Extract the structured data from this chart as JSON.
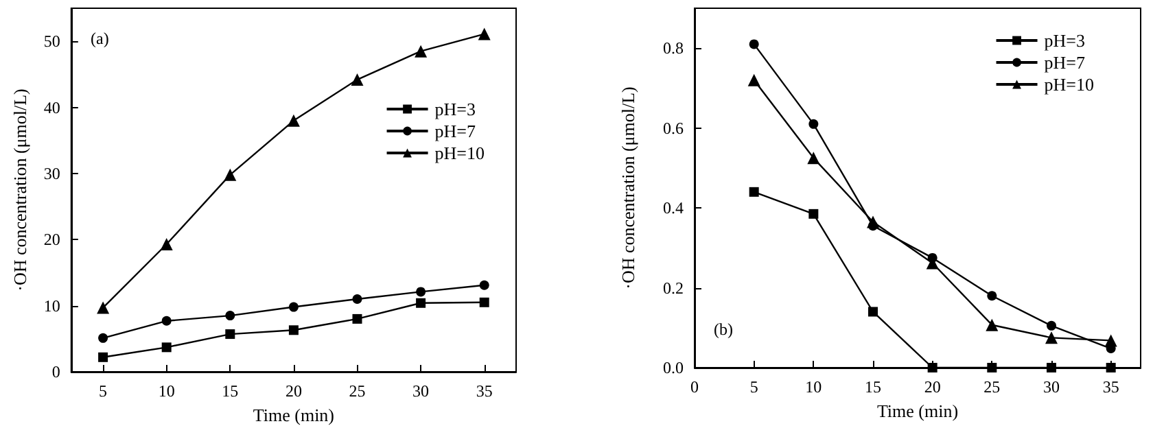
{
  "chart_data": [
    {
      "type": "line",
      "xlabel": "Time (min)",
      "ylabel": "·OH concentration (μmol/L)",
      "annotations": [
        "(a)"
      ],
      "x": [
        5,
        10,
        15,
        20,
        25,
        30,
        35
      ],
      "xlim": [
        2.5,
        37.5
      ],
      "xticks": [
        5,
        10,
        15,
        20,
        25,
        30,
        35
      ],
      "ylim": [
        0,
        55
      ],
      "yticks": [
        0,
        10,
        20,
        30,
        40,
        50
      ],
      "grid": false,
      "legend": "top right",
      "line_style": "solid",
      "series": [
        {
          "name": "pH=3",
          "color": "#000000",
          "marker": "square",
          "values": [
            2.2,
            3.7,
            5.7,
            6.3,
            8.0,
            10.4,
            10.5
          ]
        },
        {
          "name": "pH=7",
          "color": "#000000",
          "marker": "circle",
          "values": [
            5.1,
            7.7,
            8.5,
            9.8,
            11.0,
            12.1,
            13.1
          ]
        },
        {
          "name": "pH=10",
          "color": "#000000",
          "marker": "triangle",
          "values": [
            9.7,
            19.3,
            29.8,
            38.0,
            44.2,
            48.5,
            51.1
          ]
        }
      ]
    },
    {
      "type": "line",
      "xlabel": "Time (min)",
      "ylabel": "·OH concentration (μmol/L)",
      "annotations": [
        "(b)"
      ],
      "x": [
        5,
        10,
        15,
        20,
        25,
        30,
        35
      ],
      "xlim": [
        0,
        37.5
      ],
      "xticks": [
        0,
        5,
        10,
        15,
        20,
        25,
        30,
        35
      ],
      "ylim": [
        0,
        0.9
      ],
      "yticks": [
        {
          "value": 0,
          "label": "0.0"
        },
        0.2,
        0.4,
        0.6,
        0.8
      ],
      "grid": false,
      "legend": "top right",
      "line_style": "solid",
      "series": [
        {
          "name": "pH=3",
          "color": "#000000",
          "marker": "square",
          "values": [
            0.44,
            0.385,
            0.14,
            0,
            0,
            0,
            0
          ]
        },
        {
          "name": "pH=7",
          "color": "#000000",
          "marker": "circle",
          "values": [
            0.81,
            0.61,
            0.355,
            0.275,
            0.18,
            0.105,
            0.048
          ]
        },
        {
          "name": "pH=10",
          "color": "#000000",
          "marker": "triangle",
          "values": [
            0.72,
            0.525,
            0.365,
            0.262,
            0.107,
            0.075,
            0.068
          ]
        }
      ]
    }
  ]
}
